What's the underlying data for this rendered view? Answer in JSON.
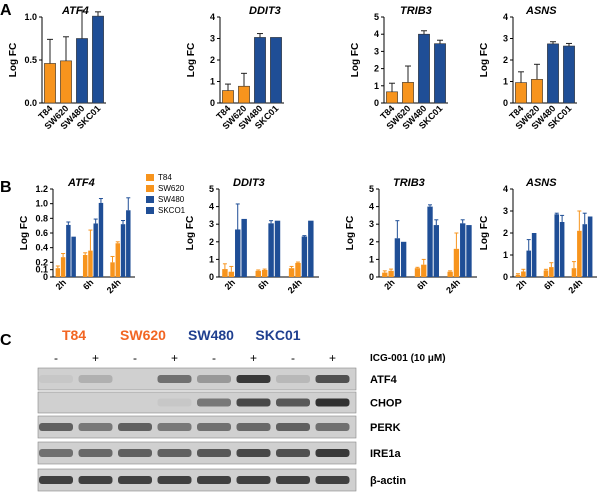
{
  "panels": {
    "a": "A",
    "b": "B",
    "c": "C"
  },
  "colors": {
    "orange": "#F7941D",
    "blue": "#1F4E96",
    "axis": "#000000",
    "blot_bg": "#D0D0D0",
    "band": "#303030",
    "t84_label": "#F26522",
    "sw620_label": "#F26522",
    "sw480_label": "#1F3F8F",
    "skc01_label": "#1F3F8F"
  },
  "chart_data": [
    {
      "id": "a1",
      "type": "bar",
      "title": "ATF4",
      "ylabel": "Log FC",
      "ylim": [
        0,
        1.0
      ],
      "ytick_labels": [
        "0.0",
        "0.5",
        "1.0"
      ],
      "ytick_values": [
        0,
        0.5,
        1.0
      ],
      "categories": [
        "T84",
        "SW620",
        "SW480",
        "SKC01"
      ],
      "values": [
        0.46,
        0.49,
        0.75,
        1.01
      ],
      "errors": [
        0.28,
        0.28,
        0.33,
        0.05
      ],
      "colors": [
        "orange",
        "orange",
        "blue",
        "blue"
      ]
    },
    {
      "id": "a2",
      "type": "bar",
      "title": "DDIT3",
      "ylabel": "Log FC",
      "ylim": [
        0,
        4
      ],
      "ytick_labels": [
        "0",
        "1",
        "2",
        "3",
        "4"
      ],
      "ytick_values": [
        0,
        1,
        2,
        3,
        4
      ],
      "categories": [
        "T84",
        "SW620",
        "SW480",
        "SKC01"
      ],
      "values": [
        0.58,
        0.78,
        3.05,
        3.05
      ],
      "errors": [
        0.3,
        0.6,
        0.18,
        0.0
      ],
      "colors": [
        "orange",
        "orange",
        "blue",
        "blue"
      ]
    },
    {
      "id": "a3",
      "type": "bar",
      "title": "TRIB3",
      "ylabel": "Log FC",
      "ylim": [
        0,
        5
      ],
      "ytick_labels": [
        "0",
        "1",
        "2",
        "3",
        "4",
        "5"
      ],
      "ytick_values": [
        0,
        1,
        2,
        3,
        4,
        5
      ],
      "categories": [
        "T84",
        "SW620",
        "SW480",
        "SKC01"
      ],
      "values": [
        0.65,
        1.2,
        4.0,
        3.45
      ],
      "errors": [
        0.5,
        0.95,
        0.2,
        0.2
      ],
      "colors": [
        "orange",
        "orange",
        "blue",
        "blue"
      ]
    },
    {
      "id": "a4",
      "type": "bar",
      "title": "ASNS",
      "ylabel": "Log FC",
      "ylim": [
        0,
        4
      ],
      "ytick_labels": [
        "0",
        "1",
        "2",
        "3",
        "4"
      ],
      "ytick_values": [
        0,
        1,
        2,
        3,
        4
      ],
      "categories": [
        "T84",
        "SW620",
        "SW480",
        "SKC01"
      ],
      "values": [
        0.95,
        1.1,
        2.75,
        2.65
      ],
      "errors": [
        0.5,
        0.7,
        0.1,
        0.12
      ],
      "colors": [
        "orange",
        "orange",
        "blue",
        "blue"
      ]
    },
    {
      "id": "b1",
      "type": "bar",
      "title": "ATF4",
      "ylabel": "Log FC",
      "ylim": [
        0,
        1.2
      ],
      "ytick_labels": [
        "0",
        "0.1",
        "0.2",
        "0.4",
        "0.6",
        "0.8",
        "1.0",
        "1.2"
      ],
      "ytick_values": [
        0,
        0.1,
        0.2,
        0.4,
        0.6,
        0.8,
        1.0,
        1.2
      ],
      "categories": [
        "2h",
        "6h",
        "24h"
      ],
      "series": [
        {
          "name": "T84",
          "values": [
            0.12,
            0.3,
            0.2
          ],
          "errors": [
            0.03,
            0.03,
            0.08
          ]
        },
        {
          "name": "SW620",
          "values": [
            0.27,
            0.36,
            0.46
          ],
          "errors": [
            0.05,
            0.28,
            0.02
          ]
        },
        {
          "name": "SW480",
          "values": [
            0.71,
            0.73,
            0.72
          ],
          "errors": [
            0.04,
            0.06,
            0.05
          ]
        },
        {
          "name": "SKCO1",
          "values": [
            0.55,
            1.01,
            0.91
          ],
          "errors": [
            0.0,
            0.06,
            0.17
          ]
        }
      ]
    },
    {
      "id": "b2",
      "type": "bar",
      "title": "DDIT3",
      "ylabel": "Log FC",
      "ylim": [
        0,
        5
      ],
      "ytick_labels": [
        "0",
        "1",
        "2",
        "3",
        "4",
        "5"
      ],
      "ytick_values": [
        0,
        1,
        2,
        3,
        4,
        5
      ],
      "categories": [
        "2h",
        "6h",
        "24h"
      ],
      "series": [
        {
          "name": "T84",
          "values": [
            0.45,
            0.35,
            0.5
          ],
          "errors": [
            0.3,
            0.05,
            0.1
          ]
        },
        {
          "name": "SW620",
          "values": [
            0.3,
            0.4,
            0.8
          ],
          "errors": [
            0.3,
            0.05,
            0.05
          ]
        },
        {
          "name": "SW480",
          "values": [
            2.7,
            3.05,
            2.3
          ],
          "errors": [
            1.45,
            0.15,
            0.05
          ]
        },
        {
          "name": "SKCO1",
          "values": [
            3.3,
            3.2,
            3.2
          ],
          "errors": [
            0.0,
            0.0,
            0.0
          ]
        }
      ]
    },
    {
      "id": "b3",
      "type": "bar",
      "title": "TRIB3",
      "ylabel": "Log FC",
      "ylim": [
        0,
        5
      ],
      "ytick_labels": [
        "0",
        "1",
        "2",
        "3",
        "4",
        "5"
      ],
      "ytick_values": [
        0,
        1,
        2,
        3,
        4,
        5
      ],
      "categories": [
        "2h",
        "6h",
        "24h"
      ],
      "series": [
        {
          "name": "T84",
          "values": [
            0.25,
            0.5,
            0.3
          ],
          "errors": [
            0.1,
            0.05,
            0.05
          ]
        },
        {
          "name": "SW620",
          "values": [
            0.35,
            0.7,
            1.6
          ],
          "errors": [
            0.1,
            0.3,
            0.9
          ]
        },
        {
          "name": "SW480",
          "values": [
            2.2,
            4.0,
            3.05
          ],
          "errors": [
            1.0,
            0.1,
            0.2
          ]
        },
        {
          "name": "SKCO1",
          "values": [
            2.0,
            2.95,
            2.95
          ],
          "errors": [
            0.0,
            0.3,
            0.0
          ]
        }
      ]
    },
    {
      "id": "b4",
      "type": "bar",
      "title": "ASNS",
      "ylabel": "Log FC",
      "ylim": [
        0,
        4
      ],
      "ytick_labels": [
        "0",
        "1",
        "2",
        "3",
        "4"
      ],
      "ytick_values": [
        0,
        1,
        2,
        3,
        4
      ],
      "categories": [
        "2h",
        "6h",
        "24h"
      ],
      "series": [
        {
          "name": "T84",
          "values": [
            0.1,
            0.3,
            0.4
          ],
          "errors": [
            0.05,
            0.05,
            0.3
          ]
        },
        {
          "name": "SW620",
          "values": [
            0.25,
            0.45,
            2.1
          ],
          "errors": [
            0.1,
            0.2,
            0.9
          ]
        },
        {
          "name": "SW480",
          "values": [
            1.2,
            2.85,
            2.4
          ],
          "errors": [
            0.5,
            0.05,
            0.5
          ]
        },
        {
          "name": "SKCO1",
          "values": [
            2.0,
            2.5,
            2.75
          ],
          "errors": [
            0.0,
            0.3,
            0.0
          ]
        }
      ]
    }
  ],
  "legend": {
    "items": [
      "T84",
      "SW620",
      "SW480",
      "SKCO1"
    ],
    "colors": [
      "#F7941D",
      "#F7941D",
      "#1F4E96",
      "#1F4E96"
    ]
  },
  "blot": {
    "cell_lines": [
      "T84",
      "SW620",
      "SW480",
      "SKC01"
    ],
    "treatment_signs": [
      "-",
      "+",
      "-",
      "+",
      "-",
      "+",
      "-",
      "+"
    ],
    "treatment_label": "ICG-001 (10 μM)",
    "rows": [
      {
        "label": "ATF4",
        "intensity": [
          0.05,
          0.2,
          0.0,
          0.6,
          0.35,
          0.95,
          0.15,
          0.8
        ]
      },
      {
        "label": "CHOP",
        "intensity": [
          0.0,
          0.0,
          0.0,
          0.05,
          0.55,
          0.85,
          0.75,
          1.0
        ]
      },
      {
        "label": "PERK",
        "intensity": [
          0.7,
          0.55,
          0.7,
          0.55,
          0.6,
          0.65,
          0.7,
          0.6
        ]
      },
      {
        "label": "IRE1a",
        "intensity": [
          0.6,
          0.65,
          0.7,
          0.7,
          0.75,
          0.85,
          0.8,
          0.95
        ]
      },
      {
        "label": "β-actin",
        "intensity": [
          0.9,
          0.9,
          0.9,
          0.9,
          0.9,
          0.9,
          0.9,
          0.9
        ]
      }
    ]
  }
}
